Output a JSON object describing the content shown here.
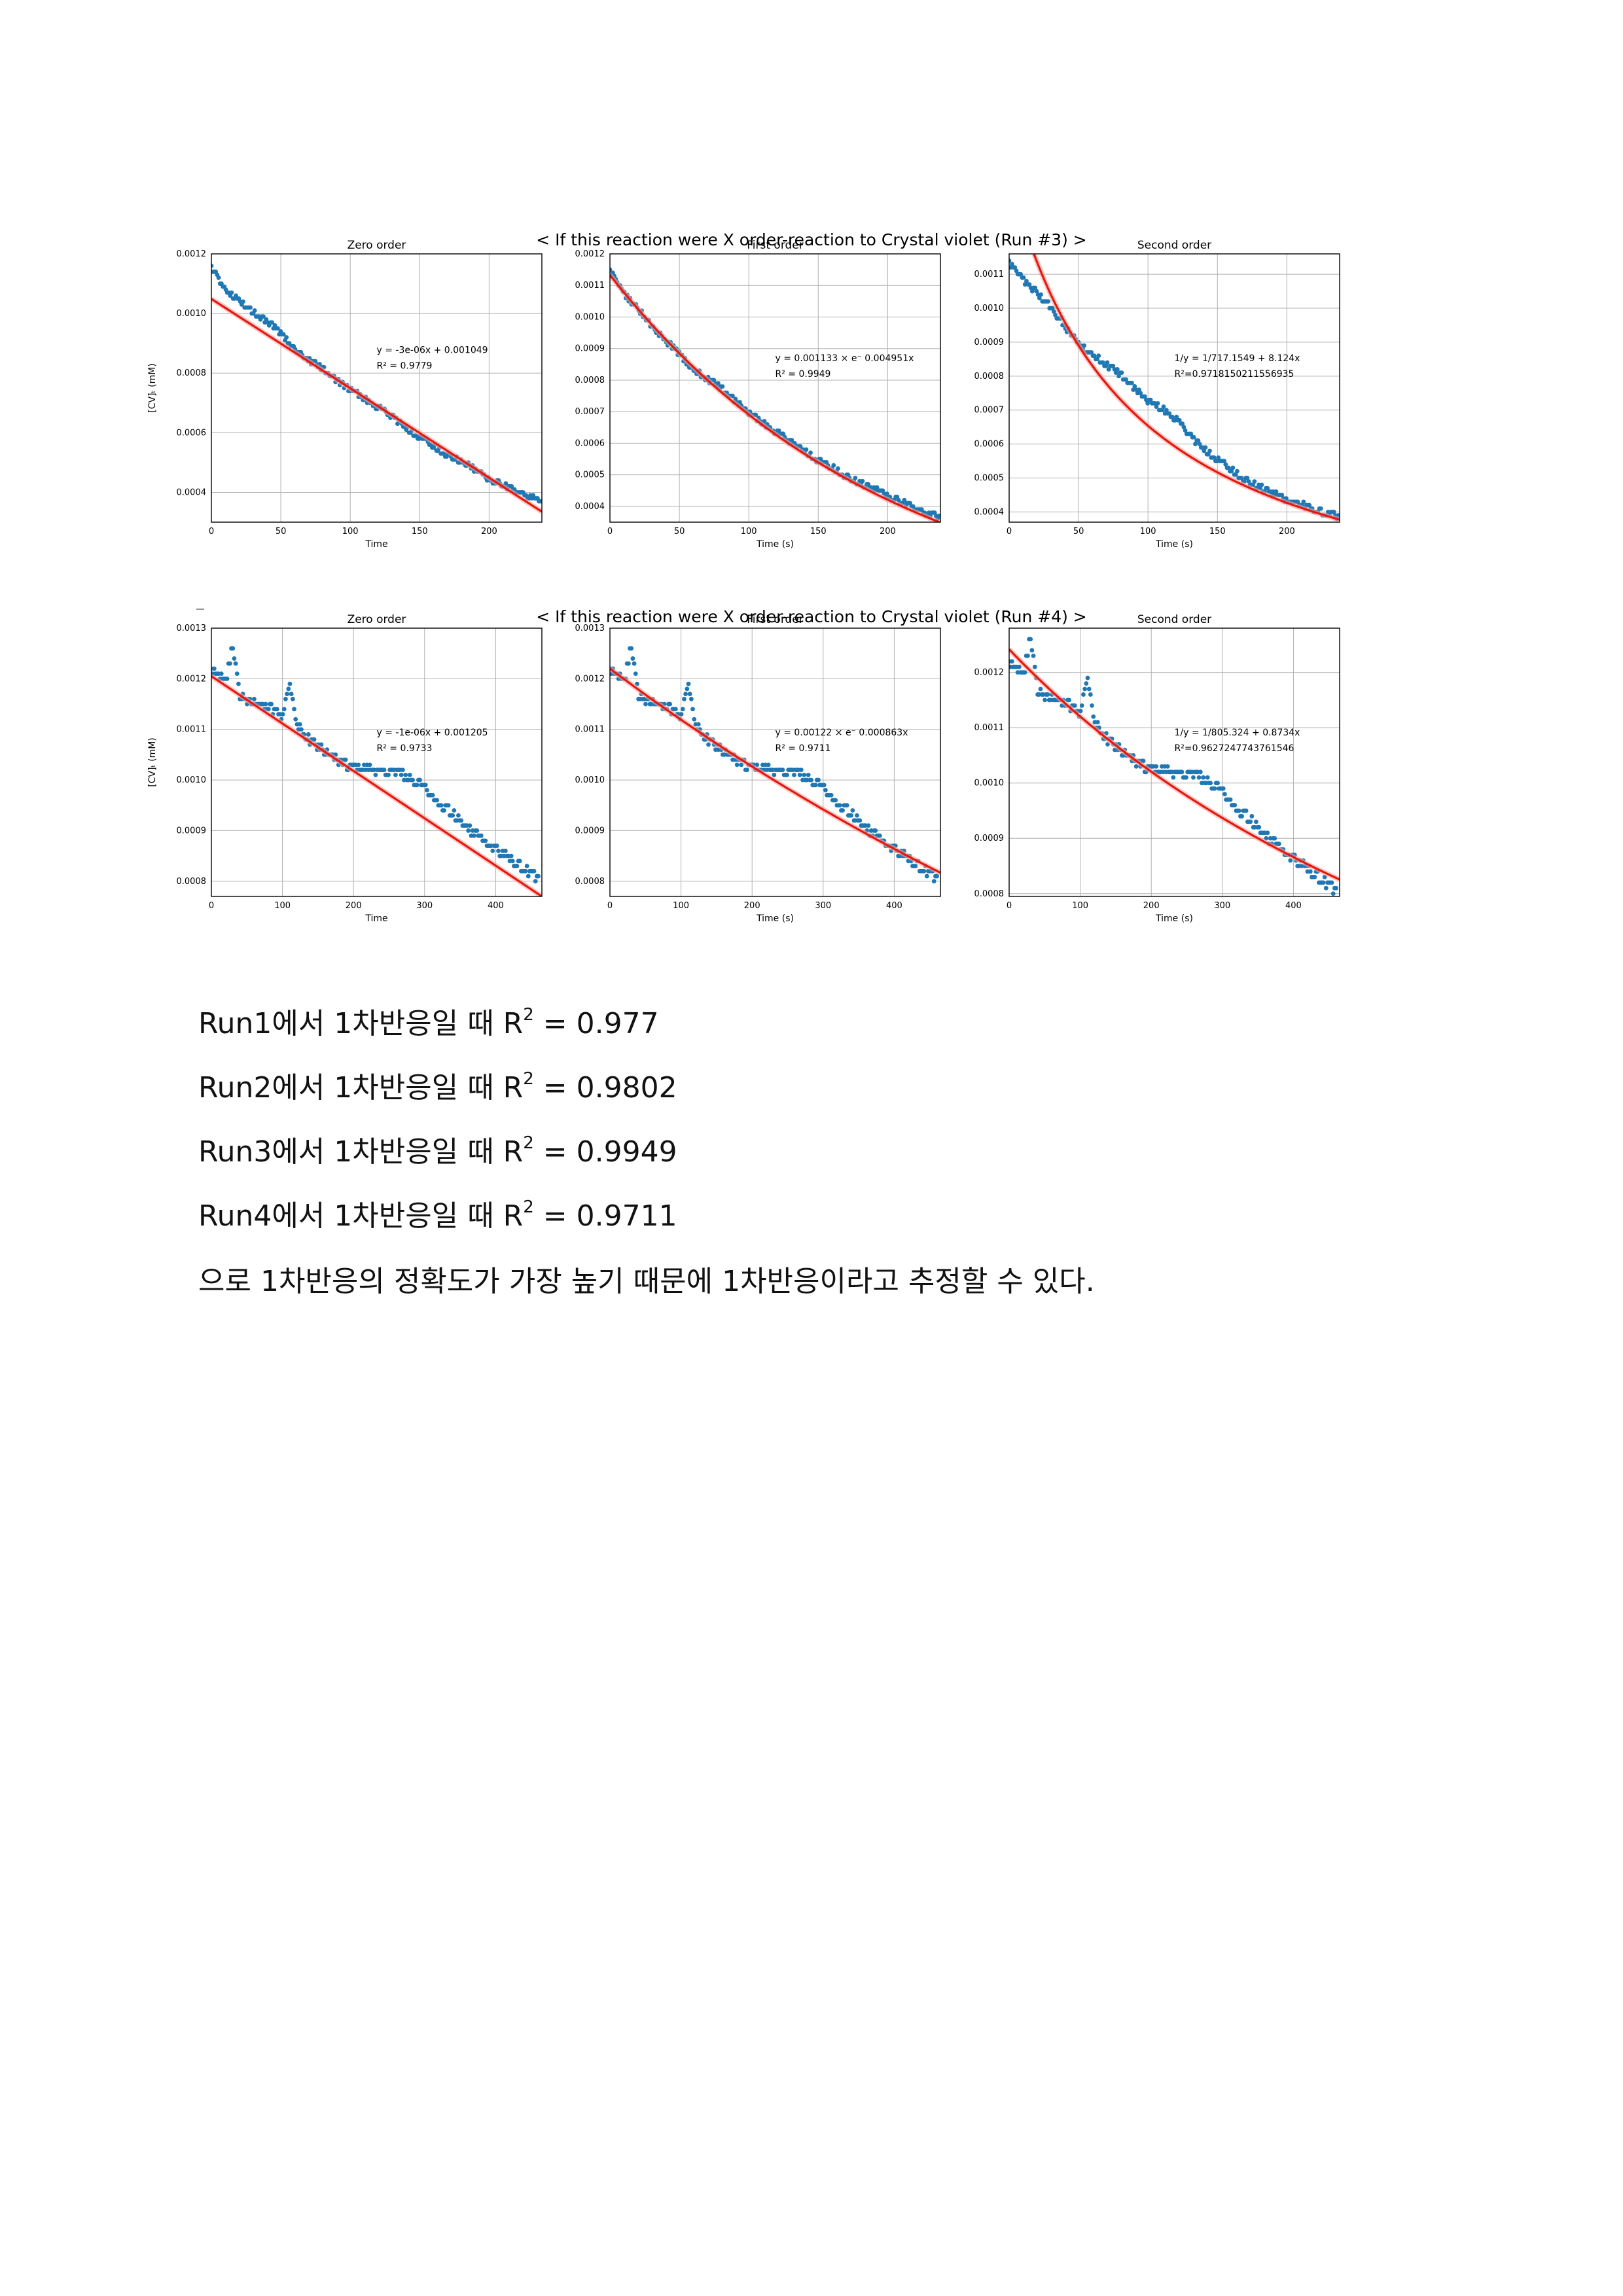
{
  "figures": [
    {
      "title": "< If this reaction were X order-reaction to Crystal violet (Run #3) >",
      "ylabel": "[CV]ₜ (mM)"
    },
    {
      "title": "< If this reaction were X order-reaction to Crystal violet (Run #4) >",
      "ylabel": "[CV]ₜ (mM)"
    }
  ],
  "chart_data": [
    {
      "type": "scatter",
      "figure": 0,
      "title": "Zero order",
      "xlabel": "Time",
      "ylabel": "[CV]ₜ (mM)",
      "xlim": [
        0,
        238
      ],
      "ylim": [
        0.0003,
        0.0012
      ],
      "xticks": [
        0,
        50,
        100,
        150,
        200
      ],
      "yticks": [
        0.0004,
        0.0006,
        0.0008,
        0.001,
        0.0012
      ],
      "ytick_labels": [
        "0.0004",
        "0.0006",
        "0.0008",
        "0.0010",
        "0.0012"
      ],
      "grid": true,
      "annotation": [
        "y = -3e-06x + 0.001049",
        "R² = 0.9779"
      ],
      "scatter": {
        "x": [
          0,
          10,
          20,
          30,
          40,
          50,
          60,
          70,
          80,
          90,
          100,
          110,
          120,
          130,
          140,
          150,
          160,
          170,
          180,
          190,
          200,
          210,
          220,
          230,
          238
        ],
        "y": [
          0.00115,
          0.00107,
          0.00104,
          0.001,
          0.00097,
          0.00093,
          0.00088,
          0.00084,
          0.00081,
          0.00077,
          0.00074,
          0.00071,
          0.00068,
          0.00065,
          0.00061,
          0.00058,
          0.00055,
          0.00052,
          0.0005,
          0.00047,
          0.00044,
          0.00042,
          0.0004,
          0.00038,
          0.00036
        ]
      },
      "fit": {
        "x": [
          0,
          238
        ],
        "y": [
          0.001049,
          0.000335
        ]
      }
    },
    {
      "type": "scatter",
      "figure": 0,
      "title": "First order",
      "xlabel": "Time (s)",
      "ylabel": "",
      "xlim": [
        0,
        238
      ],
      "ylim": [
        0.00035,
        0.0012
      ],
      "xticks": [
        0,
        50,
        100,
        150,
        200
      ],
      "yticks": [
        0.0004,
        0.0005,
        0.0006,
        0.0007,
        0.0008,
        0.0009,
        0.001,
        0.0011,
        0.0012
      ],
      "ytick_labels": [
        "0.0004",
        "0.0005",
        "0.0006",
        "0.0007",
        "0.0008",
        "0.0009",
        "0.0010",
        "0.0011",
        "0.0012"
      ],
      "grid": true,
      "annotation": [
        "y = 0.001133 × e⁻ 0.004951x",
        "R² = 0.9949"
      ],
      "scatter": {
        "x": [
          0,
          10,
          20,
          30,
          40,
          50,
          60,
          70,
          80,
          90,
          100,
          110,
          120,
          130,
          140,
          150,
          160,
          170,
          180,
          190,
          200,
          210,
          220,
          230,
          238
        ],
        "y": [
          0.00114,
          0.00107,
          0.00102,
          0.00097,
          0.00092,
          0.00088,
          0.00083,
          0.0008,
          0.00077,
          0.00073,
          0.00069,
          0.00066,
          0.00063,
          0.0006,
          0.00057,
          0.00054,
          0.00052,
          0.00049,
          0.00047,
          0.00045,
          0.00043,
          0.00041,
          0.00039,
          0.00037,
          0.00036
        ]
      },
      "fit": {
        "model": "exp",
        "a": 0.001133,
        "k": 0.004951
      }
    },
    {
      "type": "scatter",
      "figure": 0,
      "title": "Second order",
      "xlabel": "Time (s)",
      "ylabel": "",
      "xlim": [
        0,
        238
      ],
      "ylim": [
        0.00037,
        0.00116
      ],
      "xticks": [
        0,
        50,
        100,
        150,
        200
      ],
      "yticks": [
        0.0004,
        0.0005,
        0.0006,
        0.0007,
        0.0008,
        0.0009,
        0.001,
        0.0011
      ],
      "ytick_labels": [
        "0.0004",
        "0.0005",
        "0.0006",
        "0.0007",
        "0.0008",
        "0.0009",
        "0.0010",
        "0.0011"
      ],
      "grid": true,
      "annotation": [
        "1/y = 1/717.1549 + 8.124x",
        "R²=0.9718150211556935"
      ],
      "scatter": {
        "x": [
          0,
          10,
          20,
          30,
          40,
          50,
          60,
          70,
          80,
          90,
          100,
          110,
          120,
          130,
          140,
          150,
          160,
          170,
          180,
          190,
          200,
          210,
          220,
          230,
          238
        ],
        "y": [
          0.00113,
          0.00108,
          0.00104,
          0.001,
          0.00094,
          0.00089,
          0.00086,
          0.00083,
          0.0008,
          0.00076,
          0.00072,
          0.0007,
          0.00067,
          0.00062,
          0.00058,
          0.00055,
          0.00052,
          0.00049,
          0.00047,
          0.00045,
          0.00043,
          0.00042,
          0.0004,
          0.00039,
          0.00038
        ]
      },
      "fit": {
        "model": "second",
        "a": 717.1549,
        "k": 8.124
      }
    },
    {
      "type": "scatter",
      "figure": 1,
      "title": "Zero order",
      "xlabel": "Time",
      "ylabel": "[CV]ₜ (mM)",
      "xlim": [
        0,
        465
      ],
      "ylim": [
        0.00077,
        0.0013
      ],
      "xticks": [
        0,
        100,
        200,
        300,
        400
      ],
      "yticks": [
        0.0008,
        0.0009,
        0.001,
        0.0011,
        0.0012,
        0.0013
      ],
      "ytick_labels": [
        "0.0008",
        "0.0009",
        "0.0010",
        "0.0011",
        "0.0012",
        "0.0013"
      ],
      "grid": true,
      "annotation": [
        "y = -1e-06x + 0.001205",
        "R² = 0.9733"
      ],
      "scatter": {
        "x": [
          0,
          20,
          30,
          40,
          60,
          80,
          100,
          110,
          120,
          140,
          160,
          180,
          200,
          220,
          240,
          260,
          280,
          300,
          320,
          340,
          360,
          380,
          400,
          420,
          440,
          460
        ],
        "y": [
          0.00121,
          0.00119,
          0.00126,
          0.00116,
          0.00115,
          0.00114,
          0.00112,
          0.00119,
          0.00111,
          0.00107,
          0.00105,
          0.00103,
          0.00102,
          0.00102,
          0.00101,
          0.00101,
          0.001,
          0.00098,
          0.00095,
          0.00093,
          0.0009,
          0.00088,
          0.00086,
          0.00084,
          0.00082,
          0.0008
        ]
      },
      "fit": {
        "x": [
          0,
          465
        ],
        "y": [
          0.001205,
          0.00077
        ]
      }
    },
    {
      "type": "scatter",
      "figure": 1,
      "title": "First order",
      "xlabel": "Time (s)",
      "ylabel": "",
      "xlim": [
        0,
        465
      ],
      "ylim": [
        0.00077,
        0.0013
      ],
      "xticks": [
        0,
        100,
        200,
        300,
        400
      ],
      "yticks": [
        0.0008,
        0.0009,
        0.001,
        0.0011,
        0.0012,
        0.0013
      ],
      "ytick_labels": [
        "0.0008",
        "0.0009",
        "0.0010",
        "0.0011",
        "0.0012",
        "0.0013"
      ],
      "grid": true,
      "annotation": [
        "y = 0.00122 × e⁻ 0.000863x",
        "R² = 0.9711"
      ],
      "scatter": {
        "x": [
          0,
          20,
          30,
          40,
          60,
          80,
          100,
          110,
          120,
          140,
          160,
          180,
          200,
          220,
          240,
          260,
          280,
          300,
          320,
          340,
          360,
          380,
          400,
          420,
          440,
          460
        ],
        "y": [
          0.00121,
          0.00119,
          0.00126,
          0.00116,
          0.00115,
          0.00114,
          0.00112,
          0.00119,
          0.00111,
          0.00107,
          0.00105,
          0.00103,
          0.00102,
          0.00102,
          0.00101,
          0.00101,
          0.001,
          0.00098,
          0.00095,
          0.00093,
          0.0009,
          0.00088,
          0.00086,
          0.00084,
          0.00082,
          0.0008
        ]
      },
      "fit": {
        "model": "exp",
        "a": 0.00122,
        "k": 0.000863
      }
    },
    {
      "type": "scatter",
      "figure": 1,
      "title": "Second order",
      "xlabel": "Time (s)",
      "ylabel": "",
      "xlim": [
        0,
        465
      ],
      "ylim": [
        0.000795,
        0.00128
      ],
      "xticks": [
        0,
        100,
        200,
        300,
        400
      ],
      "yticks": [
        0.0008,
        0.0009,
        0.001,
        0.0011,
        0.0012
      ],
      "ytick_labels": [
        "0.0008",
        "0.0009",
        "0.0010",
        "0.0011",
        "0.0012"
      ],
      "grid": true,
      "annotation": [
        "1/y = 1/805.324 + 0.8734x",
        "R²=0.9627247743761546"
      ],
      "scatter": {
        "x": [
          0,
          20,
          30,
          40,
          60,
          80,
          100,
          110,
          120,
          140,
          160,
          180,
          200,
          220,
          240,
          260,
          280,
          300,
          320,
          340,
          360,
          380,
          400,
          420,
          440,
          460
        ],
        "y": [
          0.00121,
          0.00119,
          0.00126,
          0.00116,
          0.00115,
          0.00114,
          0.00112,
          0.00119,
          0.00111,
          0.00107,
          0.00105,
          0.00103,
          0.00102,
          0.00102,
          0.00101,
          0.00101,
          0.001,
          0.00098,
          0.00095,
          0.00093,
          0.0009,
          0.00088,
          0.00086,
          0.00084,
          0.00082,
          0.0008
        ]
      },
      "fit": {
        "model": "second",
        "a": 805.324,
        "k": 0.8734
      }
    }
  ],
  "text": {
    "lines": [
      {
        "prefix": "Run1에서  1차반응일  때  R",
        "sup": "2",
        "suffix": " = 0.977"
      },
      {
        "prefix": "Run2에서  1차반응일  때  R",
        "sup": "2",
        "suffix": " = 0.9802"
      },
      {
        "prefix": "Run3에서  1차반응일  때  R",
        "sup": "2",
        "suffix": " = 0.9949"
      },
      {
        "prefix": "Run4에서  1차반응일  때  R",
        "sup": "2",
        "suffix": " = 0.9711"
      }
    ],
    "conclusion": "으로  1차반응의  정확도가  가장  높기  때문에  1차반응이라고  추정할  수  있다."
  },
  "colors": {
    "scatter": "#1f77b4",
    "fit": "#e8170e",
    "grid": "#b0b0b0"
  }
}
